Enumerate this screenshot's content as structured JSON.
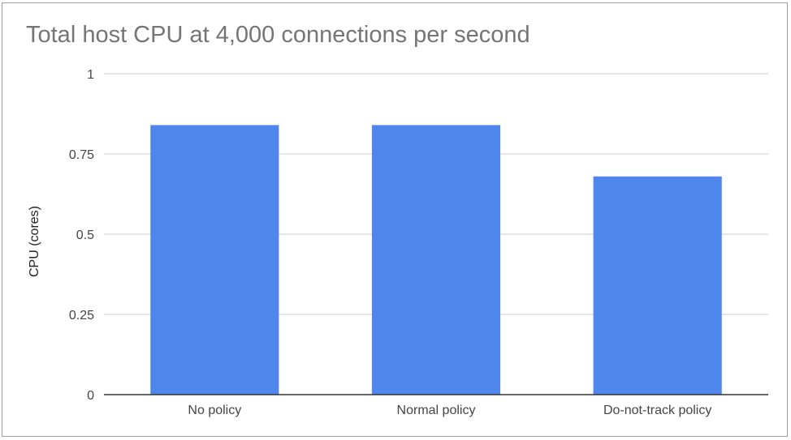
{
  "chart_data": {
    "type": "bar",
    "title": "Total host CPU at 4,000 connections per second",
    "xlabel": "",
    "ylabel": "CPU (cores)",
    "categories": [
      "No policy",
      "Normal policy",
      "Do-not-track policy"
    ],
    "values": [
      0.84,
      0.84,
      0.68
    ],
    "ylim": [
      0,
      1
    ],
    "yticks": [
      0,
      0.25,
      0.5,
      0.75,
      1
    ],
    "ytick_labels": [
      "0",
      "0.25",
      "0.5",
      "0.75",
      "1"
    ],
    "grid": true,
    "legend": "none",
    "bar_color": "#4f86ec",
    "grid_color": "#cccccc",
    "axis_color": "#333333"
  }
}
